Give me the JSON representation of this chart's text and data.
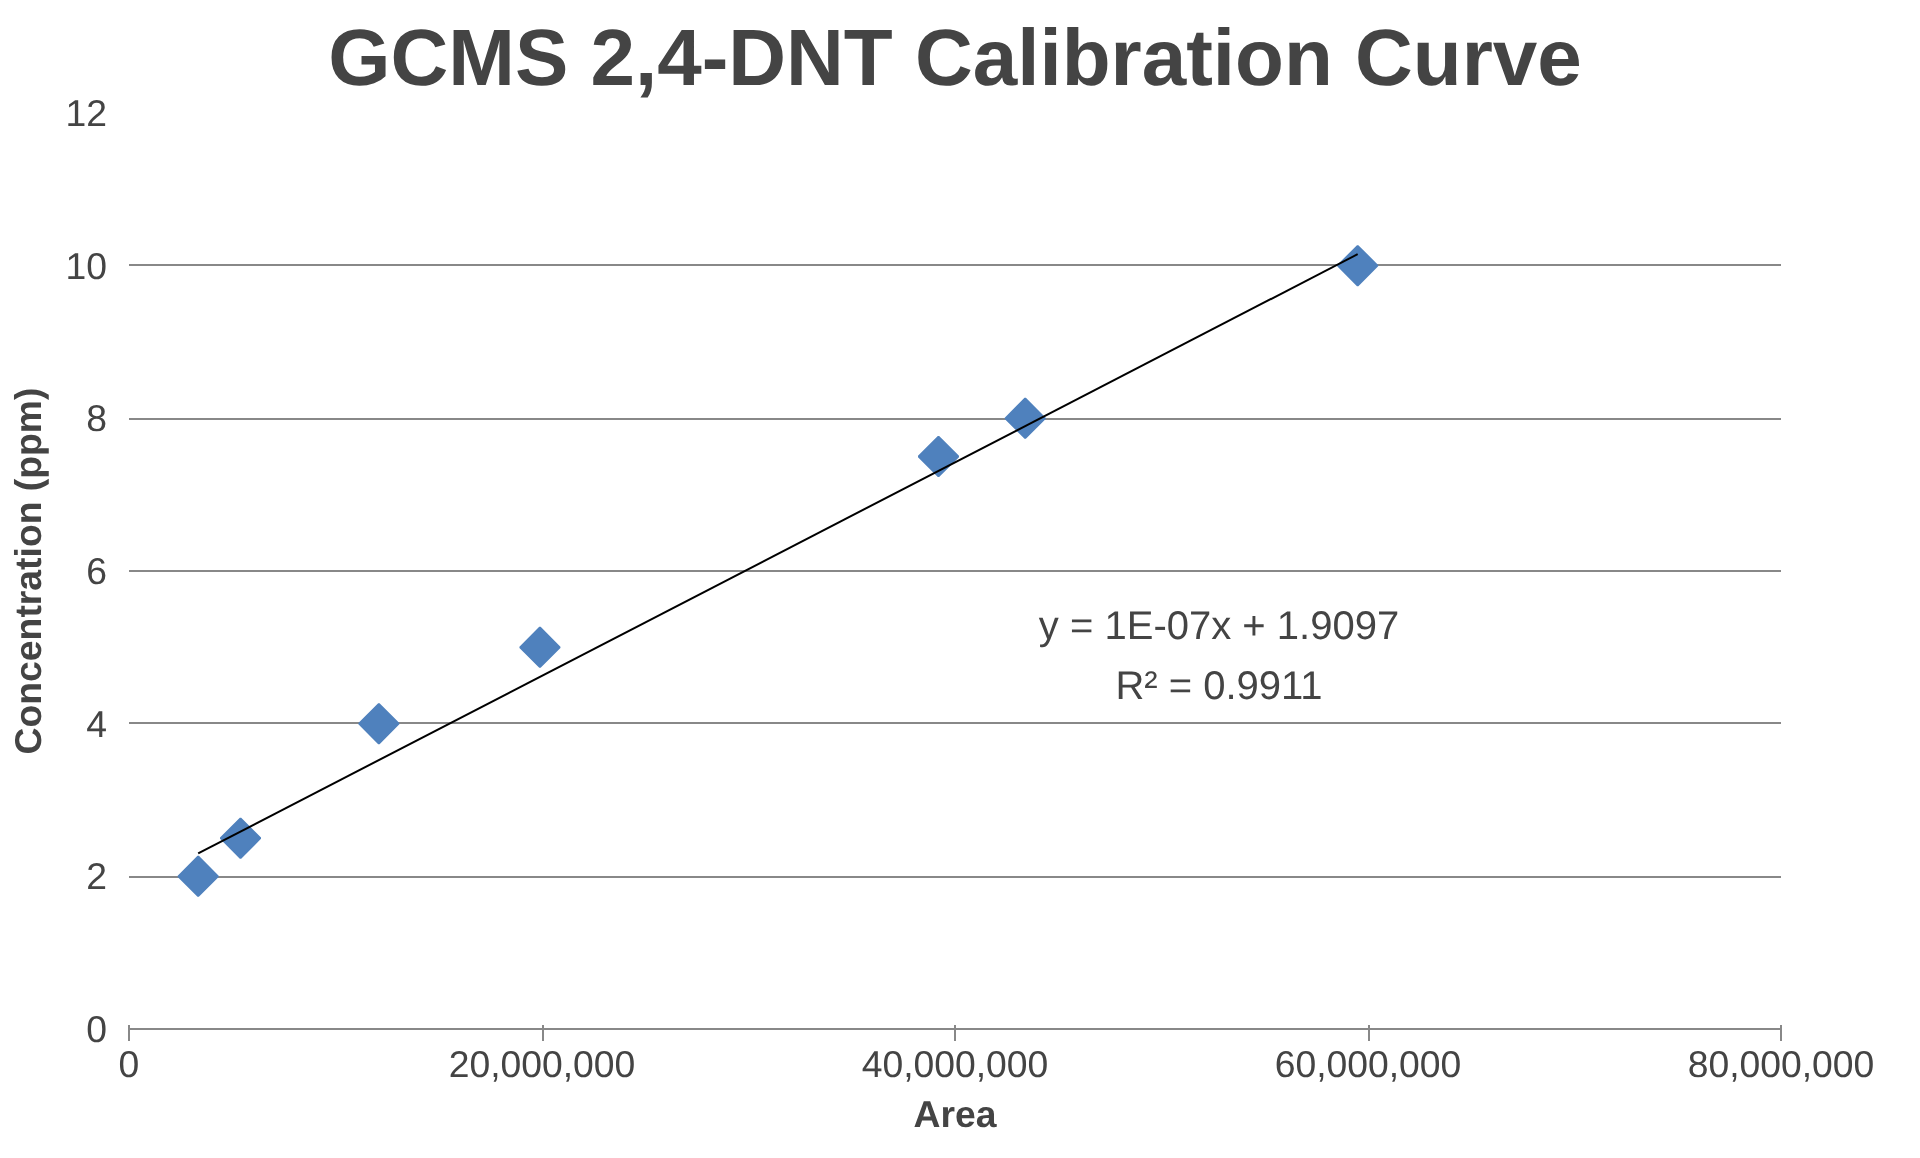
{
  "chart_data": {
    "type": "scatter",
    "title": "GCMS 2,4-DNT Calibration Curve",
    "xlabel": "Area",
    "ylabel": "Concentration (ppm)",
    "xlim": [
      0,
      80000000
    ],
    "ylim": [
      0,
      12
    ],
    "xticks": [
      0,
      {
        "value": 20000000,
        "label": "20,000,000"
      },
      {
        "value": 40000000,
        "label": "40,000,000"
      },
      {
        "value": 60000000,
        "label": "60,000,000"
      },
      {
        "value": 80000000,
        "label": "80,000,000"
      }
    ],
    "yticks": [
      0,
      2,
      4,
      6,
      8,
      10,
      12
    ],
    "grid": "y",
    "marker": "diamond",
    "series": [
      {
        "color": "#4f81bd",
        "x": [
          3350000,
          5400000,
          12100000,
          19900000,
          39200000,
          43400000,
          59500000
        ],
        "values": [
          2,
          2.5,
          4,
          5,
          7.5,
          8,
          10
        ]
      },
      {
        "type": "line",
        "marker": "none",
        "color": "#000000",
        "x": [
          3350000,
          59500000
        ],
        "values": [
          2.3,
          10.15
        ]
      }
    ],
    "annotations": [
      "y = 1E-07x + 1.9097",
      "R² = 0.9911"
    ]
  }
}
